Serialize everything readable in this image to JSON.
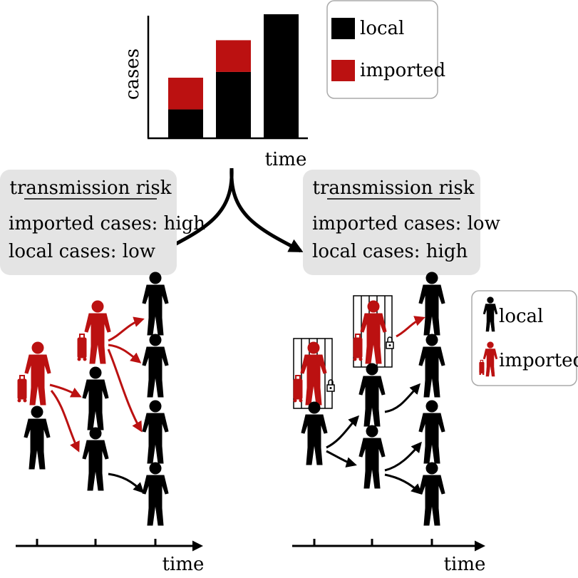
{
  "chart_data": {
    "type": "bar",
    "stacked": true,
    "ylabel": "cases",
    "xlabel": "time",
    "categories": [
      "",
      "",
      ""
    ],
    "series": [
      {
        "name": "local",
        "color": "#000000",
        "values": [
          1.0,
          2.3,
          4.3
        ]
      },
      {
        "name": "imported",
        "color": "#bb1111",
        "values": [
          1.1,
          1.1,
          0
        ]
      }
    ],
    "ylim": [
      0,
      4.3
    ]
  },
  "legend_top": {
    "local": "local",
    "imported": "imported"
  },
  "left_box": {
    "heading": "transmission risk",
    "line1": "imported cases: high",
    "line2": "local cases: low"
  },
  "right_box": {
    "heading": "transmission risk",
    "line1": "imported cases: low",
    "line2": "local cases: high"
  },
  "legend_bottom": {
    "local": "local",
    "imported": "imported"
  },
  "timeline_left": {
    "label": "time"
  },
  "timeline_right": {
    "label": "time"
  },
  "colors": {
    "local": "#000000",
    "imported": "#bb1111",
    "box_bg": "#e4e4e4"
  }
}
